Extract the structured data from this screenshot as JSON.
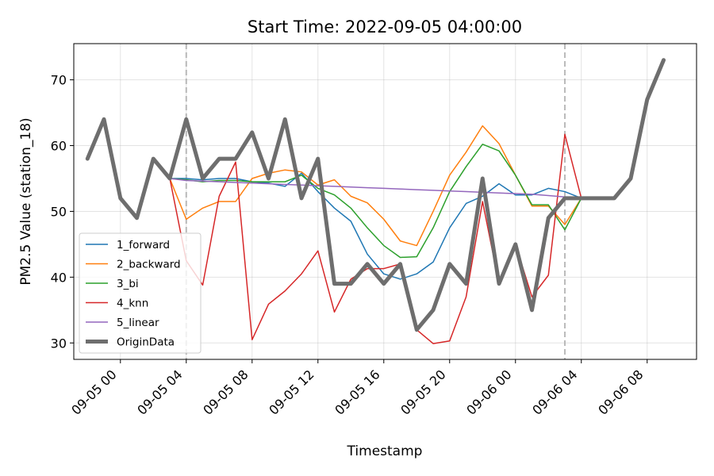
{
  "chart_data": {
    "type": "line",
    "title": "Start Time: 2022-09-05 04:00:00",
    "xlabel": "Timestamp",
    "ylabel": "PM2.5 Value (station_18)",
    "ylim": [
      27.5,
      75.5
    ],
    "xlim": [
      "2022-09-04 21:10",
      "2022-09-06 11:00"
    ],
    "yticks": [
      30,
      40,
      50,
      60,
      70
    ],
    "xticks": [
      "09-05 00",
      "09-05 04",
      "09-05 08",
      "09-05 12",
      "09-05 16",
      "09-05 20",
      "09-06 00",
      "09-06 04",
      "09-06 08"
    ],
    "grid": true,
    "legend_position": "lower-left",
    "markers": [
      "2022-09-05 04:00",
      "2022-09-06 03:00"
    ],
    "x": [
      "2022-09-04 22:00",
      "2022-09-04 23:00",
      "2022-09-05 00:00",
      "2022-09-05 01:00",
      "2022-09-05 02:00",
      "2022-09-05 03:00",
      "2022-09-05 04:00",
      "2022-09-05 05:00",
      "2022-09-05 06:00",
      "2022-09-05 07:00",
      "2022-09-05 08:00",
      "2022-09-05 09:00",
      "2022-09-05 10:00",
      "2022-09-05 11:00",
      "2022-09-05 12:00",
      "2022-09-05 13:00",
      "2022-09-05 14:00",
      "2022-09-05 15:00",
      "2022-09-05 16:00",
      "2022-09-05 17:00",
      "2022-09-05 18:00",
      "2022-09-05 19:00",
      "2022-09-05 20:00",
      "2022-09-05 21:00",
      "2022-09-05 22:00",
      "2022-09-05 23:00",
      "2022-09-06 00:00",
      "2022-09-06 01:00",
      "2022-09-06 02:00",
      "2022-09-06 03:00",
      "2022-09-06 04:00",
      "2022-09-06 05:00",
      "2022-09-06 06:00",
      "2022-09-06 07:00",
      "2022-09-06 08:00",
      "2022-09-06 09:00"
    ],
    "series": [
      {
        "name": "1_forward",
        "color": "#1f77b4",
        "width": 1.5,
        "values": [
          58,
          64,
          52,
          49,
          58,
          55,
          55,
          54.8,
          55,
          55,
          54.5,
          54.3,
          53.8,
          55.8,
          53,
          50.5,
          48.5,
          43.5,
          40.5,
          39.7,
          40.5,
          42.3,
          47.5,
          51.2,
          52.3,
          54.2,
          52.5,
          52.5,
          53.5,
          53,
          52,
          52,
          52,
          55,
          67,
          73
        ]
      },
      {
        "name": "2_backward",
        "color": "#ff7f0e",
        "width": 1.5,
        "values": [
          58,
          64,
          52,
          49,
          58,
          55,
          48.8,
          50.5,
          51.5,
          51.5,
          55,
          55.8,
          56.3,
          56,
          54,
          54.8,
          52.3,
          51.3,
          48.8,
          45.5,
          44.8,
          50,
          55.5,
          59,
          63,
          60.3,
          55.5,
          50.8,
          50.8,
          48,
          52,
          52,
          52,
          55,
          67,
          73
        ]
      },
      {
        "name": "3_bi",
        "color": "#2ca02c",
        "width": 1.5,
        "values": [
          58,
          64,
          52,
          49,
          58,
          55,
          54.8,
          54.5,
          54.7,
          54.7,
          54.5,
          54.5,
          54.5,
          55.5,
          53.5,
          52.5,
          50.5,
          47.5,
          44.8,
          43,
          43.1,
          47.5,
          53,
          56.8,
          60.2,
          59.2,
          55.5,
          51,
          51,
          47.2,
          52,
          52,
          52,
          55,
          67,
          73
        ]
      },
      {
        "name": "4_knn",
        "color": "#d62728",
        "width": 1.5,
        "values": [
          58,
          64,
          52,
          49,
          58,
          55,
          42.5,
          38.8,
          52.3,
          57.5,
          30.5,
          35.9,
          37.9,
          40.5,
          44,
          34.7,
          39.7,
          41.3,
          41.3,
          42,
          32,
          29.9,
          30.3,
          37,
          51.5,
          39,
          45,
          37,
          40.3,
          61.7,
          52,
          52,
          52,
          55,
          67,
          73
        ]
      },
      {
        "name": "5_linear",
        "color": "#9467bd",
        "width": 1.5,
        "values": [
          58,
          64,
          52,
          49,
          58,
          55,
          54.7,
          54.6,
          54.5,
          54.4,
          54.3,
          54.2,
          54.1,
          54,
          53.9,
          53.8,
          53.7,
          53.6,
          53.5,
          53.4,
          53.3,
          53.2,
          53.1,
          53,
          52.9,
          52.8,
          52.7,
          52.6,
          52.4,
          52.2,
          52,
          52,
          52,
          55,
          67,
          73
        ]
      },
      {
        "name": "OriginData",
        "color": "#6e6e6e",
        "width": 5,
        "values": [
          58,
          64,
          52,
          49,
          58,
          55,
          64,
          55,
          58,
          58,
          62,
          55,
          64,
          52,
          58,
          39,
          39,
          42,
          39,
          42,
          32,
          35,
          42,
          39,
          55,
          39,
          45,
          35,
          49,
          52,
          52,
          52,
          52,
          55,
          67,
          73
        ]
      }
    ]
  }
}
